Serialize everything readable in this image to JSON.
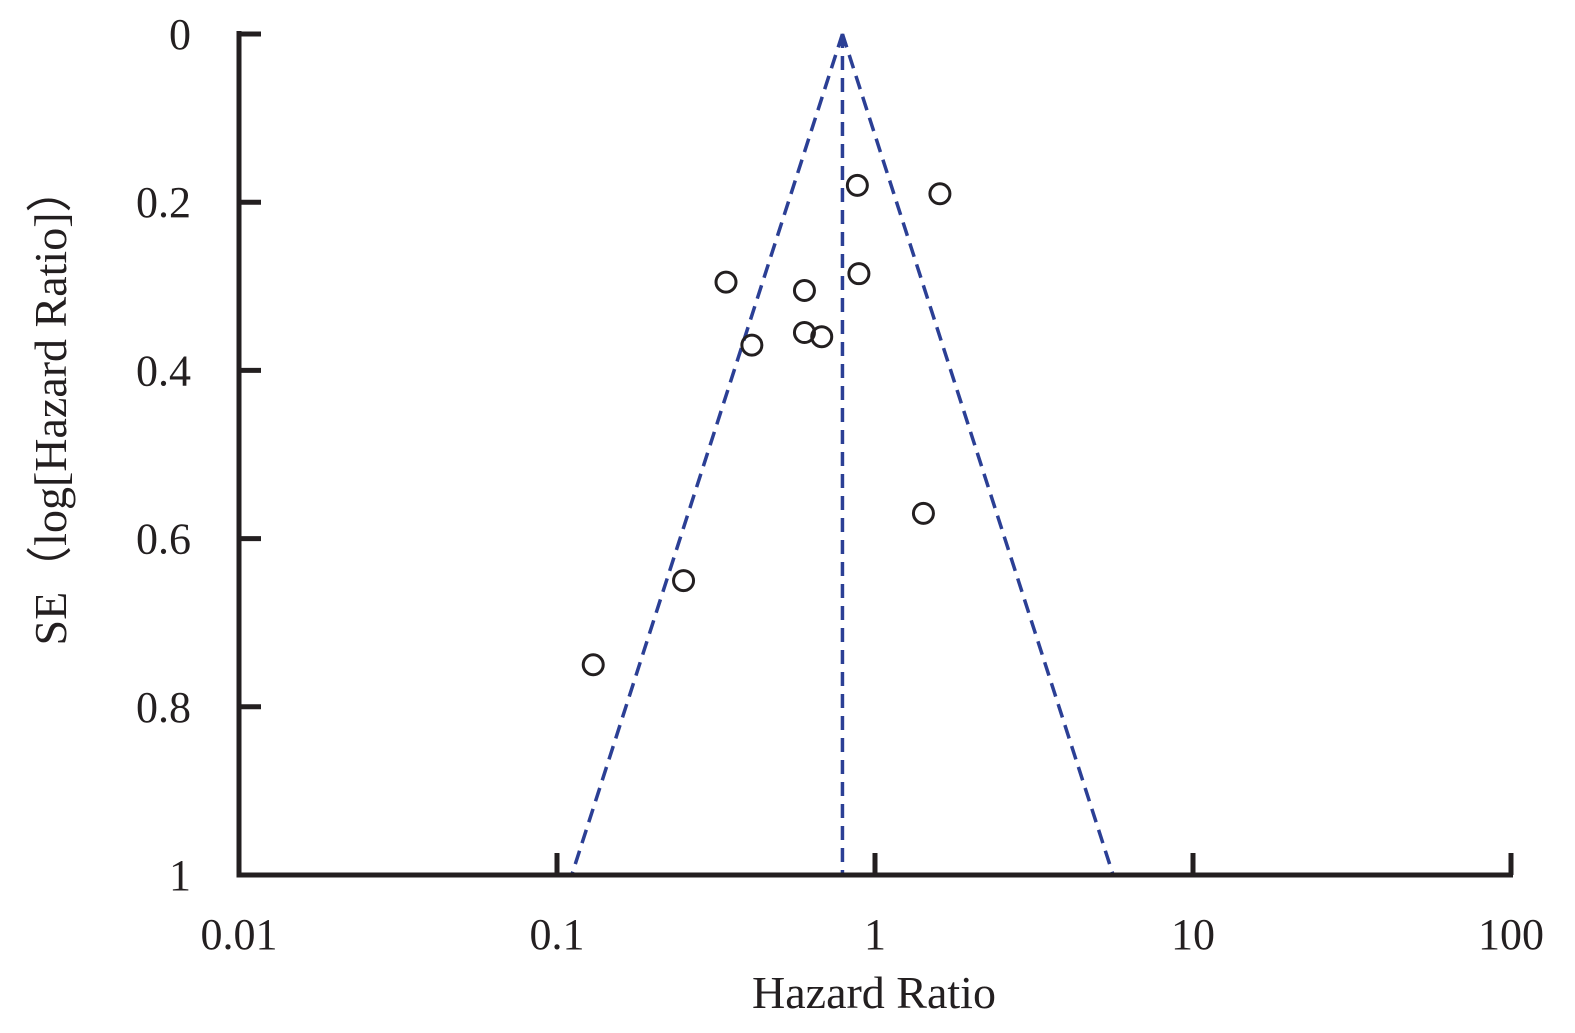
{
  "chart_data": {
    "type": "scatter",
    "subtype": "funnel-plot",
    "title": "",
    "xlabel": "Hazard Ratio",
    "ylabel": "SE（log[Hazard Ratio]）",
    "x_scale": "log",
    "xlim": [
      0.01,
      100
    ],
    "ylim": [
      0,
      1
    ],
    "y_inverted": true,
    "x_ticks": [
      0.01,
      0.1,
      1,
      10,
      100
    ],
    "x_tick_labels": [
      "0.01",
      "0.1",
      "1",
      "10",
      "100"
    ],
    "y_ticks": [
      0,
      0.2,
      0.4,
      0.6,
      0.8,
      1
    ],
    "y_tick_labels": [
      "0",
      "0.2",
      "0.4",
      "0.6",
      "0.8",
      "1"
    ],
    "grid": false,
    "legend": "none",
    "pooled_hr": 0.79,
    "funnel_limits": "pseudo 95% CI",
    "colors": {
      "funnel": "#2b3f95",
      "points": "#231f20",
      "axes": "#231f20"
    },
    "points": [
      {
        "hr": 0.88,
        "se": 0.18
      },
      {
        "hr": 1.6,
        "se": 0.19
      },
      {
        "hr": 0.89,
        "se": 0.285
      },
      {
        "hr": 0.34,
        "se": 0.295
      },
      {
        "hr": 0.6,
        "se": 0.305
      },
      {
        "hr": 0.6,
        "se": 0.355
      },
      {
        "hr": 0.68,
        "se": 0.36
      },
      {
        "hr": 0.41,
        "se": 0.37
      },
      {
        "hr": 1.42,
        "se": 0.57
      },
      {
        "hr": 0.25,
        "se": 0.65
      },
      {
        "hr": 0.13,
        "se": 0.75
      }
    ]
  }
}
